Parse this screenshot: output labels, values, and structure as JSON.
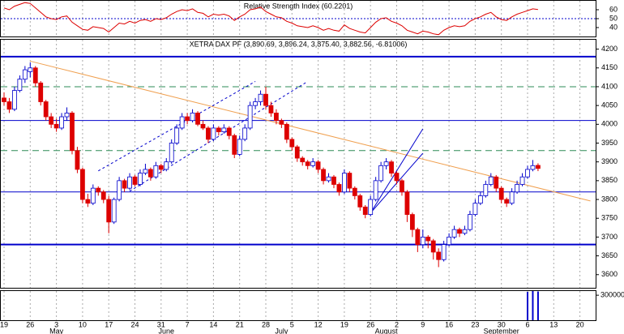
{
  "chart_data": {
    "type": "candlestick",
    "title": "XETRA DAX PF (3,890.69, 3,896.24, 3,875.40, 3,882.56, -6.81006)",
    "categories": [
      "19",
      null,
      null,
      null,
      null,
      "26",
      null,
      null,
      null,
      null,
      "3",
      null,
      null,
      null,
      null,
      "10",
      null,
      null,
      null,
      null,
      "17",
      null,
      null,
      null,
      null,
      "24",
      null,
      null,
      null,
      null,
      "31",
      null,
      null,
      null,
      null,
      "7",
      null,
      null,
      null,
      null,
      "14",
      null,
      null,
      null,
      null,
      "21",
      null,
      null,
      null,
      null,
      "28",
      null,
      null,
      null,
      null,
      "5",
      null,
      null,
      null,
      null,
      "12",
      null,
      null,
      null,
      null,
      "19",
      null,
      null,
      null,
      null,
      "26",
      null,
      null,
      null,
      null,
      "2",
      null,
      null,
      null,
      null,
      "9",
      null,
      null,
      null,
      null,
      "16",
      null,
      null,
      null,
      null,
      "23",
      null,
      null,
      null,
      null,
      "30",
      null,
      null,
      null,
      null,
      "6",
      null,
      null,
      null,
      null,
      "13",
      null,
      null,
      null,
      null,
      "20",
      null,
      null
    ],
    "months": [
      null,
      null,
      null,
      null,
      null,
      null,
      null,
      null,
      null,
      null,
      "May",
      null,
      null,
      null,
      null,
      null,
      null,
      null,
      null,
      null,
      null,
      null,
      null,
      null,
      null,
      null,
      null,
      null,
      null,
      null,
      null,
      "June",
      null,
      null,
      null,
      null,
      null,
      null,
      null,
      null,
      null,
      null,
      null,
      null,
      null,
      null,
      null,
      null,
      null,
      null,
      null,
      null,
      null,
      "July",
      null,
      null,
      null,
      null,
      null,
      null,
      null,
      null,
      null,
      null,
      null,
      null,
      null,
      null,
      null,
      null,
      null,
      null,
      null,
      "August",
      null,
      null,
      null,
      null,
      null,
      null,
      null,
      null,
      null,
      null,
      null,
      null,
      null,
      null,
      null,
      null,
      null,
      null,
      null,
      null,
      null,
      "September",
      null,
      null,
      null,
      null,
      null,
      null,
      null,
      null,
      null,
      null,
      null,
      null,
      null,
      null,
      null
    ],
    "candles": [
      [
        4070,
        4085,
        4050,
        4060
      ],
      [
        4060,
        4070,
        4030,
        4040
      ],
      [
        4040,
        4100,
        4035,
        4090
      ],
      [
        4090,
        4130,
        4085,
        4120
      ],
      [
        4120,
        4155,
        4110,
        4145
      ],
      [
        4140,
        4165,
        4125,
        4150
      ],
      [
        4150,
        4155,
        4100,
        4110
      ],
      [
        4110,
        4115,
        4050,
        4060
      ],
      [
        4060,
        4065,
        4010,
        4020
      ],
      [
        4020,
        4030,
        3990,
        4000
      ],
      [
        4000,
        4015,
        3980,
        3990
      ],
      [
        3990,
        4030,
        3985,
        4020
      ],
      [
        4020,
        4045,
        4010,
        4030
      ],
      [
        4030,
        4035,
        3920,
        3930
      ],
      [
        3930,
        3940,
        3870,
        3880
      ],
      [
        3880,
        3885,
        3790,
        3800
      ],
      [
        3800,
        3815,
        3780,
        3790
      ],
      [
        3790,
        3840,
        3785,
        3830
      ],
      [
        3830,
        3835,
        3810,
        3820
      ],
      [
        3820,
        3825,
        3790,
        3800
      ],
      [
        3800,
        3810,
        3710,
        3740
      ],
      [
        3740,
        3805,
        3735,
        3800
      ],
      [
        3800,
        3860,
        3795,
        3850
      ],
      [
        3850,
        3855,
        3820,
        3830
      ],
      [
        3830,
        3870,
        3825,
        3860
      ],
      [
        3860,
        3865,
        3835,
        3840
      ],
      [
        3840,
        3880,
        3835,
        3870
      ],
      [
        3870,
        3895,
        3865,
        3880
      ],
      [
        3880,
        3885,
        3850,
        3860
      ],
      [
        3860,
        3900,
        3855,
        3890
      ],
      [
        3890,
        3895,
        3870,
        3880
      ],
      [
        3880,
        3910,
        3875,
        3900
      ],
      [
        3900,
        3960,
        3895,
        3950
      ],
      [
        3950,
        4000,
        3945,
        3990
      ],
      [
        3990,
        4030,
        3985,
        4020
      ],
      [
        4020,
        4030,
        4000,
        4010
      ],
      [
        4010,
        4040,
        4005,
        4030
      ],
      [
        4030,
        4035,
        3995,
        4000
      ],
      [
        4000,
        4010,
        3985,
        3990
      ],
      [
        3990,
        3995,
        3950,
        3960
      ],
      [
        3960,
        4000,
        3955,
        3990
      ],
      [
        3990,
        3995,
        3970,
        3980
      ],
      [
        3980,
        4000,
        3975,
        3990
      ],
      [
        3990,
        3995,
        3960,
        3970
      ],
      [
        3970,
        3975,
        3910,
        3920
      ],
      [
        3920,
        3970,
        3915,
        3960
      ],
      [
        3960,
        4000,
        3955,
        3990
      ],
      [
        3990,
        4060,
        3985,
        4050
      ],
      [
        4050,
        4070,
        4040,
        4060
      ],
      [
        4060,
        4090,
        4050,
        4080
      ],
      [
        4080,
        4100,
        4040,
        4050
      ],
      [
        4050,
        4060,
        4020,
        4030
      ],
      [
        4030,
        4040,
        4000,
        4010
      ],
      [
        4010,
        4015,
        3990,
        4000
      ],
      [
        4000,
        4005,
        3950,
        3960
      ],
      [
        3960,
        3965,
        3930,
        3940
      ],
      [
        3940,
        3945,
        3900,
        3910
      ],
      [
        3910,
        3915,
        3890,
        3900
      ],
      [
        3900,
        3905,
        3880,
        3890
      ],
      [
        3890,
        3910,
        3885,
        3900
      ],
      [
        3900,
        3905,
        3870,
        3880
      ],
      [
        3880,
        3885,
        3840,
        3850
      ],
      [
        3850,
        3870,
        3845,
        3860
      ],
      [
        3860,
        3865,
        3830,
        3840
      ],
      [
        3840,
        3845,
        3810,
        3820
      ],
      [
        3820,
        3880,
        3815,
        3870
      ],
      [
        3870,
        3875,
        3820,
        3830
      ],
      [
        3830,
        3835,
        3800,
        3810
      ],
      [
        3810,
        3815,
        3770,
        3780
      ],
      [
        3780,
        3785,
        3750,
        3760
      ],
      [
        3760,
        3810,
        3755,
        3800
      ],
      [
        3800,
        3860,
        3795,
        3850
      ],
      [
        3850,
        3900,
        3845,
        3890
      ],
      [
        3890,
        3910,
        3880,
        3900
      ],
      [
        3900,
        3905,
        3860,
        3870
      ],
      [
        3870,
        3875,
        3840,
        3850
      ],
      [
        3850,
        3855,
        3810,
        3820
      ],
      [
        3820,
        3825,
        3740,
        3760
      ],
      [
        3760,
        3765,
        3700,
        3720
      ],
      [
        3720,
        3725,
        3660,
        3680
      ],
      [
        3680,
        3720,
        3670,
        3700
      ],
      [
        3700,
        3705,
        3670,
        3690
      ],
      [
        3690,
        3695,
        3640,
        3660
      ],
      [
        3660,
        3670,
        3620,
        3640
      ],
      [
        3640,
        3690,
        3635,
        3680
      ],
      [
        3680,
        3710,
        3675,
        3700
      ],
      [
        3700,
        3730,
        3695,
        3720
      ],
      [
        3720,
        3725,
        3700,
        3710
      ],
      [
        3710,
        3730,
        3705,
        3720
      ],
      [
        3720,
        3770,
        3715,
        3760
      ],
      [
        3760,
        3800,
        3755,
        3790
      ],
      [
        3790,
        3820,
        3785,
        3810
      ],
      [
        3810,
        3850,
        3805,
        3840
      ],
      [
        3840,
        3870,
        3835,
        3860
      ],
      [
        3860,
        3865,
        3820,
        3830
      ],
      [
        3830,
        3835,
        3790,
        3800
      ],
      [
        3800,
        3805,
        3780,
        3790
      ],
      [
        3790,
        3830,
        3785,
        3820
      ],
      [
        3820,
        3850,
        3815,
        3840
      ],
      [
        3840,
        3870,
        3835,
        3860
      ],
      [
        3860,
        3890,
        3855,
        3880
      ],
      [
        3880,
        3905,
        3875,
        3890
      ],
      [
        3890.69,
        3896.24,
        3875.4,
        3882.56
      ],
      null,
      null,
      null,
      null,
      null,
      null,
      null,
      null,
      null,
      null
    ],
    "up_color": "#0000cc",
    "down_color": "#dd0000",
    "ylim": [
      3565,
      4225
    ],
    "yticks": [
      4200,
      4150,
      4100,
      4050,
      4000,
      3950,
      3900,
      3850,
      3800,
      3750,
      3700,
      3650,
      3600
    ],
    "grid": true,
    "levels": [
      {
        "value": 4180,
        "color": "#0000cc",
        "style": "thick"
      },
      {
        "value": 4010,
        "color": "#0000cc",
        "style": "thin"
      },
      {
        "value": 3820,
        "color": "#0000cc",
        "style": "thin"
      },
      {
        "value": 3680,
        "color": "#0000cc",
        "style": "thick"
      },
      {
        "value": 4100,
        "color": "#2e8b57",
        "style": "dashed"
      },
      {
        "value": 3930,
        "color": "#2e8b57",
        "style": "dashed"
      }
    ],
    "trend_lines": [
      {
        "x": [
          5,
          112
        ],
        "y": [
          4168,
          3796
        ],
        "color": "#f0a050",
        "style": "solid"
      },
      {
        "x": [
          18,
          48
        ],
        "y": [
          3876,
          4114
        ],
        "color": "#0000cc",
        "style": "dotted"
      },
      {
        "x": [
          24,
          58
        ],
        "y": [
          3822,
          4114
        ],
        "color": "#0000cc",
        "style": "dotted"
      },
      {
        "x": [
          70,
          80
        ],
        "y": [
          3764,
          3988
        ],
        "color": "#0000cc",
        "style": "solid"
      },
      {
        "x": [
          70,
          80
        ],
        "y": [
          3764,
          3923
        ],
        "color": "#0000cc",
        "style": "solid"
      }
    ],
    "rsi": {
      "title": "Relative Strength Index (60.2201)",
      "color": "#dd0000",
      "values": [
        62,
        60,
        64,
        66,
        68,
        67,
        62,
        57,
        52,
        50,
        49,
        52,
        53,
        46,
        42,
        38,
        37,
        41,
        40,
        39,
        35,
        40,
        45,
        44,
        47,
        45,
        48,
        49,
        47,
        50,
        49,
        51,
        55,
        58,
        60,
        59,
        61,
        57,
        56,
        52,
        55,
        54,
        55,
        53,
        48,
        52,
        55,
        60,
        61,
        63,
        58,
        55,
        52,
        51,
        47,
        45,
        42,
        41,
        40,
        42,
        40,
        37,
        39,
        37,
        36,
        43,
        39,
        37,
        35,
        34,
        40,
        46,
        50,
        51,
        47,
        45,
        42,
        37,
        35,
        33,
        36,
        35,
        33,
        32,
        37,
        40,
        42,
        41,
        42,
        47,
        50,
        52,
        55,
        57,
        52,
        49,
        48,
        52,
        55,
        57,
        59,
        61,
        60.2201,
        null,
        null,
        null,
        null,
        null,
        null,
        null,
        null,
        null,
        null
      ],
      "ylim": [
        30,
        70
      ],
      "yticks": [
        60,
        50,
        40
      ],
      "reference_line": 50
    },
    "volume": {
      "color": "#0000cc",
      "ylim": [
        0,
        350000
      ],
      "yticks": [
        300000
      ],
      "values": [
        null,
        null,
        null,
        null,
        null,
        null,
        null,
        null,
        null,
        null,
        null,
        null,
        null,
        null,
        null,
        null,
        null,
        null,
        null,
        null,
        null,
        null,
        null,
        null,
        null,
        null,
        null,
        null,
        null,
        null,
        null,
        null,
        null,
        null,
        null,
        null,
        null,
        null,
        null,
        null,
        null,
        null,
        null,
        null,
        null,
        null,
        null,
        null,
        null,
        null,
        null,
        null,
        null,
        null,
        null,
        null,
        null,
        null,
        null,
        null,
        null,
        null,
        null,
        null,
        null,
        null,
        null,
        null,
        null,
        null,
        null,
        null,
        null,
        null,
        null,
        null,
        null,
        null,
        null,
        null,
        null,
        null,
        null,
        null,
        null,
        null,
        null,
        null,
        null,
        null,
        null,
        null,
        null,
        null,
        null,
        null,
        null,
        null,
        null,
        null,
        340000,
        350000,
        345000,
        null,
        null,
        null,
        null,
        null,
        null,
        null,
        null,
        null,
        null
      ]
    }
  }
}
